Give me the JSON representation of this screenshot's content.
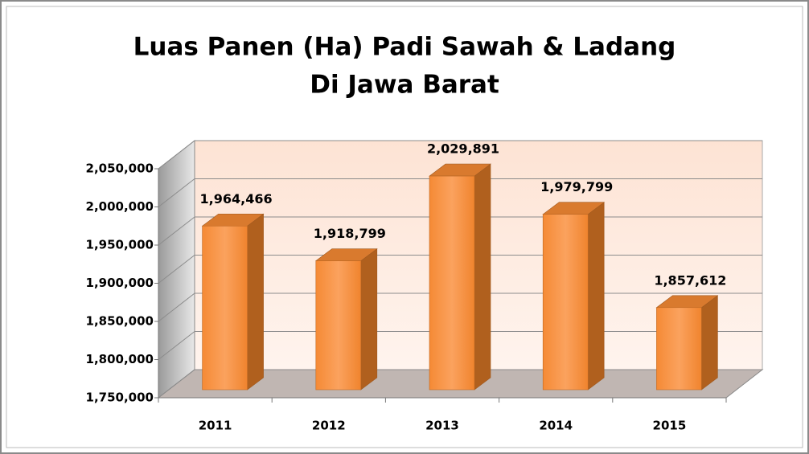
{
  "chart_data": {
    "type": "bar3d",
    "title": [
      "Luas Panen (Ha) Padi Sawah & Ladang",
      "Di Jawa Barat"
    ],
    "categories": [
      "2011",
      "2012",
      "2013",
      "2014",
      "2015"
    ],
    "values": [
      1964466,
      1918799,
      2029891,
      1979799,
      1857612
    ],
    "value_labels": [
      "1,964,466",
      "1,918,799",
      "2,029,891",
      "1,979,799",
      "1,857,612"
    ],
    "color": "#f79646",
    "ylim": [
      1750000,
      2050000
    ],
    "yticks": [
      {
        "value": 1750000,
        "label": "1,750,000"
      },
      {
        "value": 1800000,
        "label": "1,800,000"
      },
      {
        "value": 1850000,
        "label": "1,850,000"
      },
      {
        "value": 1900000,
        "label": "1,900,000"
      },
      {
        "value": 1950000,
        "label": "1,950,000"
      },
      {
        "value": 2000000,
        "label": "2,000,000"
      },
      {
        "value": 2050000,
        "label": "2,050,000"
      }
    ],
    "grid": true
  }
}
